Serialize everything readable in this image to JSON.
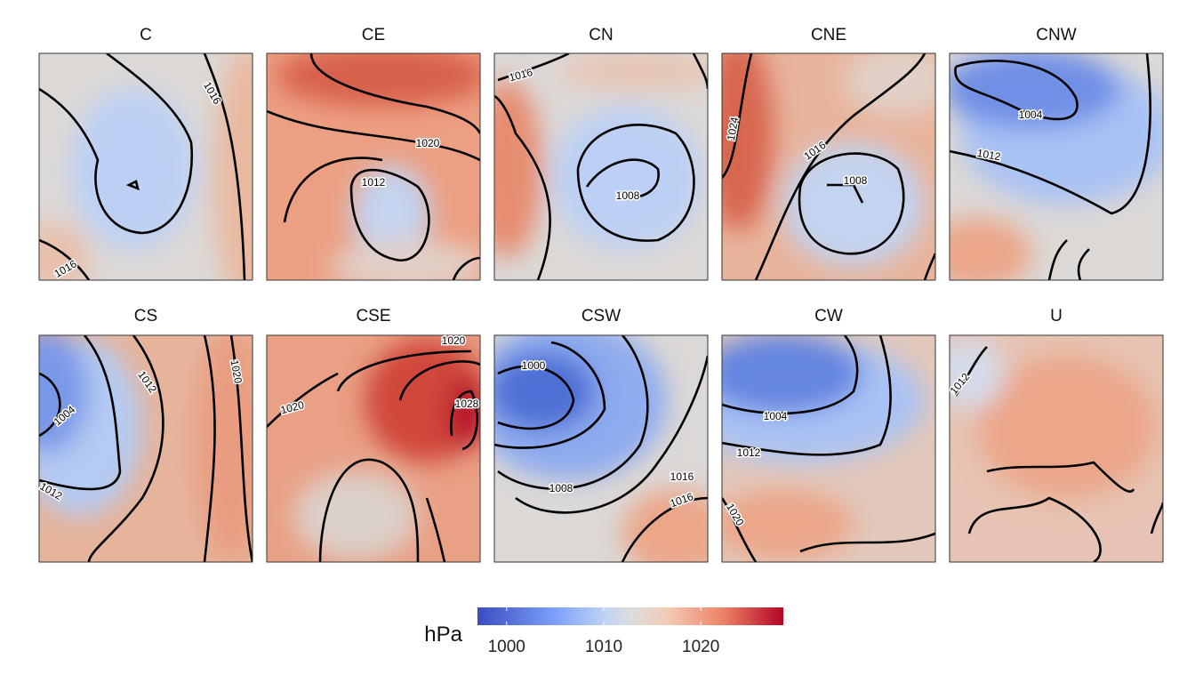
{
  "panels": [
    {
      "title": "C",
      "contour_labels": [
        1016,
        1016
      ]
    },
    {
      "title": "CE",
      "contour_labels": [
        1020,
        1012
      ]
    },
    {
      "title": "CN",
      "contour_labels": [
        1016,
        1008
      ]
    },
    {
      "title": "CNE",
      "contour_labels": [
        1024,
        1016,
        1008
      ]
    },
    {
      "title": "CNW",
      "contour_labels": [
        1004,
        1012
      ]
    },
    {
      "title": "CS",
      "contour_labels": [
        1012,
        1004,
        1012,
        1020
      ]
    },
    {
      "title": "CSE",
      "contour_labels": [
        1020,
        1020,
        1028
      ]
    },
    {
      "title": "CSW",
      "contour_labels": [
        1000,
        1008,
        1016,
        1016
      ]
    },
    {
      "title": "CW",
      "contour_labels": [
        1004,
        1012,
        1020
      ]
    },
    {
      "title": "U",
      "contour_labels": [
        1012
      ]
    }
  ],
  "colorbar": {
    "label": "hPa",
    "lim": [
      997,
      1028.5
    ],
    "ticks": [
      1000,
      1010,
      1020
    ]
  }
}
